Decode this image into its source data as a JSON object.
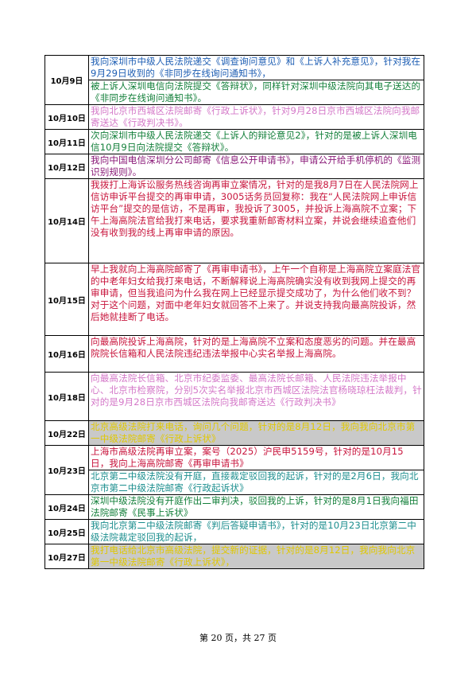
{
  "rows": [
    {
      "date": "10月9日",
      "entries": [
        {
          "text": "我向深圳市中级人民法院递交《调查询问意见》和《上诉人补充意见》，针对我在9月29日收到的《非同步在线询问通知书》，",
          "color": "#1f5fb4"
        },
        {
          "text": "被上诉人深圳电信向法院提交《答辩状》，同样针对深圳中级法院向其电子送达的《非同步在线询问通知书》。",
          "color": "#14803b"
        }
      ]
    },
    {
      "date": "10月10日",
      "entries": [
        {
          "text": "我向北京市西城区法院邮寄《行政上诉状》，针对9月28日京市西城区法院向我邮寄送达《行政判决书》。",
          "color": "#d478c8"
        }
      ]
    },
    {
      "date": "10月11日",
      "entries": [
        {
          "text": "次向深圳市中级人民法院递交《上诉人的辩论意见2》，针对的是被上诉人深圳电信10月9日向法院提交《答辩状》。",
          "color": "#14803b"
        }
      ]
    },
    {
      "date": "10月12日",
      "entries": [
        {
          "text": "我向中国电信深圳分公司邮寄《信息公开申请书》，申请公开给手机停机的《监测识别规则》。",
          "color": "#8a1a78"
        }
      ]
    },
    {
      "date": "10月14日",
      "entries": [
        {
          "text": "我拨打上海诉讼服务热线咨询再审立案情况，针对的是我8月7日在人民法院网上信访申诉平台提交的再审申请，3005话务员回复称：我在“人民法院网上申诉信访平台”提交的是信访，不是再审，我投诉了3005，并投诉上海高院不立案；下午上海高院法官给我打来电话，要求我重新邮寄材料立案，并说会继续追查他们没有收到我的线上再审申请的原因。",
          "color": "#c8143c"
        }
      ]
    },
    {
      "date": "10月15日",
      "entries": [
        {
          "text": "早上我就向上海高院邮寄了《再审申请书》，上午一个自称是上海高院立案庭法官的中老年妇女给我打来电话，不断解释说上海高院确实没有收到我网上提交的再审申请，但当我追问为什么我在网上已经显示提交成功了，为什么他们收不到？对于这个问题，对面中老年妇女就回答不上来了。并说支持我向最高院投诉，然后她就挂断了电话。",
          "color": "#c8143c"
        }
      ]
    },
    {
      "date": "10月16日",
      "entries": [
        {
          "text": "向最高院投诉上海高院，针对的是上海高院不立案和态度恶劣的问题。并在最高院院长信箱和人民法院违纪违法举报中心实名举报上海高院。",
          "color": "#c8143c"
        }
      ]
    },
    {
      "date": "10月18日",
      "entries": [
        {
          "text": "向最高法院长信箱、北京市纪委监委、最高法院长邮箱、人民法院违法举报中心、北京市检察院，分别5次实名举报北京市西城区法院法官杨晓琼枉法裁判，针对的是9月28日京市西城区法院向我邮寄送达《行政判决书》",
          "color": "#d478c8"
        }
      ]
    },
    {
      "date": "10月22日",
      "entries": [
        {
          "text": "北京高级法院打来电话，询问几个问题，针对的是8月12日，我向我向北京市第一中级法院邮寄《行政上诉状》",
          "color": "#e0c800",
          "hl": "gray"
        }
      ]
    },
    {
      "date": "10月23日",
      "entries": [
        {
          "text": "上海市高级法院再审立案，案号（2025）沪民申5159号，针对的是10月15日，我向上海高院邮寄《再审申请书》",
          "color": "#c8143c"
        },
        {
          "text": "北京第二中级法院没有开庭，直接裁定驳回我的起诉，针对的是2月6日，我向北京市第二中级法院邮寄《行政起诉状》",
          "color": "#1b8e8e"
        }
      ]
    },
    {
      "date": "10月24日",
      "entries": [
        {
          "text": "深圳中级法院没有开庭作出二审判决，驳回我的上诉，针对的是8月1日我向福田法院邮寄《民事上诉状》",
          "color": "#14803b"
        }
      ]
    },
    {
      "date": "10月25日",
      "entries": [
        {
          "text": "我向北京第二中级法院邮寄《判后答疑申请书》，针对的是10月23日北京第二中级法院裁定驳回我的起诉，",
          "color": "#1b8e8e"
        }
      ]
    },
    {
      "date": "10月27日",
      "entries": [
        {
          "text": "我打电话给北京市高级法院，提交新的证据，针对的是8月12日，我向我向北京第一中级法院邮寄《行政上诉状》，",
          "color": "#e0c800",
          "hl": "gray"
        }
      ]
    }
  ],
  "footer": "第 20 页，共 27 页"
}
